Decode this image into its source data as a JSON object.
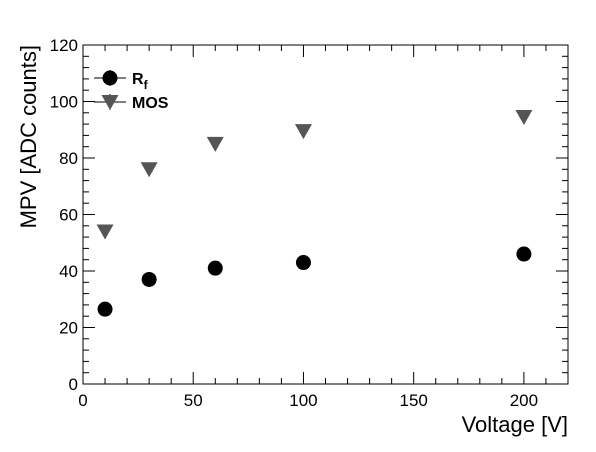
{
  "chart_data": {
    "type": "scatter",
    "title": "",
    "xlabel": "Voltage [V]",
    "ylabel": "MPV [ADC counts]",
    "xlim": [
      0,
      220
    ],
    "ylim": [
      0,
      120
    ],
    "x_ticks": [
      0,
      50,
      100,
      150,
      200
    ],
    "y_ticks": [
      0,
      20,
      40,
      60,
      80,
      100,
      120
    ],
    "grid": false,
    "legend_position": "top-left",
    "series": [
      {
        "name": "R",
        "name_subscript": "f",
        "marker": "circle",
        "color": "#000000",
        "x": [
          10,
          30,
          60,
          100,
          200
        ],
        "y": [
          26.5,
          37,
          41,
          43,
          46
        ]
      },
      {
        "name": "MOS",
        "marker": "triangle-down",
        "color": "#555555",
        "x": [
          10,
          30,
          60,
          100,
          200
        ],
        "y": [
          54,
          76,
          85,
          89.5,
          94.5
        ]
      }
    ]
  }
}
